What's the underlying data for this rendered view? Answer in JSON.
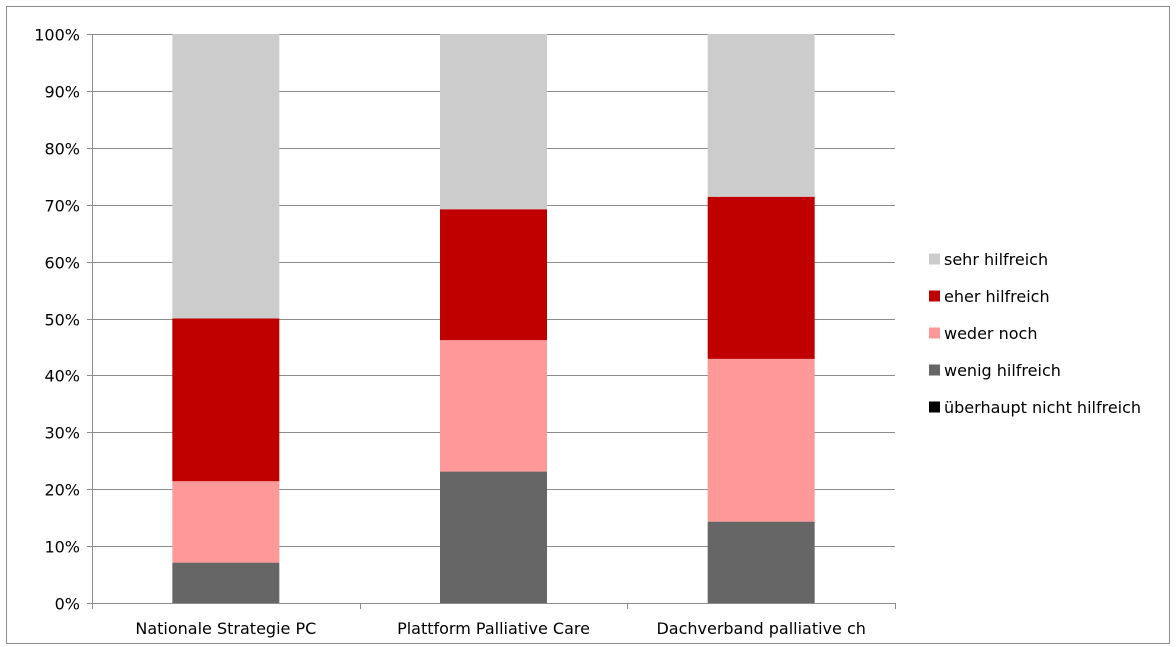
{
  "chart_data": {
    "type": "bar",
    "stacked": true,
    "title": "",
    "xlabel": "",
    "ylabel": "",
    "ylim": [
      0,
      100
    ],
    "y_ticks": [
      "0%",
      "10%",
      "20%",
      "30%",
      "40%",
      "50%",
      "60%",
      "70%",
      "80%",
      "90%",
      "100%"
    ],
    "grid": true,
    "legend_position": "right",
    "categories": [
      "Nationale Strategie PC",
      "Plattform Palliative Care",
      "Dachverband palliative ch"
    ],
    "series": [
      {
        "name": "überhaupt nicht hilfreich",
        "color": "#000000",
        "values": [
          0,
          0,
          0
        ]
      },
      {
        "name": "wenig hilfreich",
        "color": "#666666",
        "values": [
          7.1,
          23.1,
          14.3
        ]
      },
      {
        "name": "weder noch",
        "color": "#ff9999",
        "values": [
          14.3,
          23.1,
          28.6
        ]
      },
      {
        "name": "eher hilfreich",
        "color": "#c00000",
        "values": [
          28.6,
          23.0,
          28.5
        ]
      },
      {
        "name": "sehr hilfreich",
        "color": "#cccccc",
        "values": [
          50.0,
          30.8,
          28.6
        ]
      }
    ],
    "legend_order": [
      "sehr hilfreich",
      "eher hilfreich",
      "weder noch",
      "wenig hilfreich",
      "überhaupt nicht hilfreich"
    ]
  }
}
